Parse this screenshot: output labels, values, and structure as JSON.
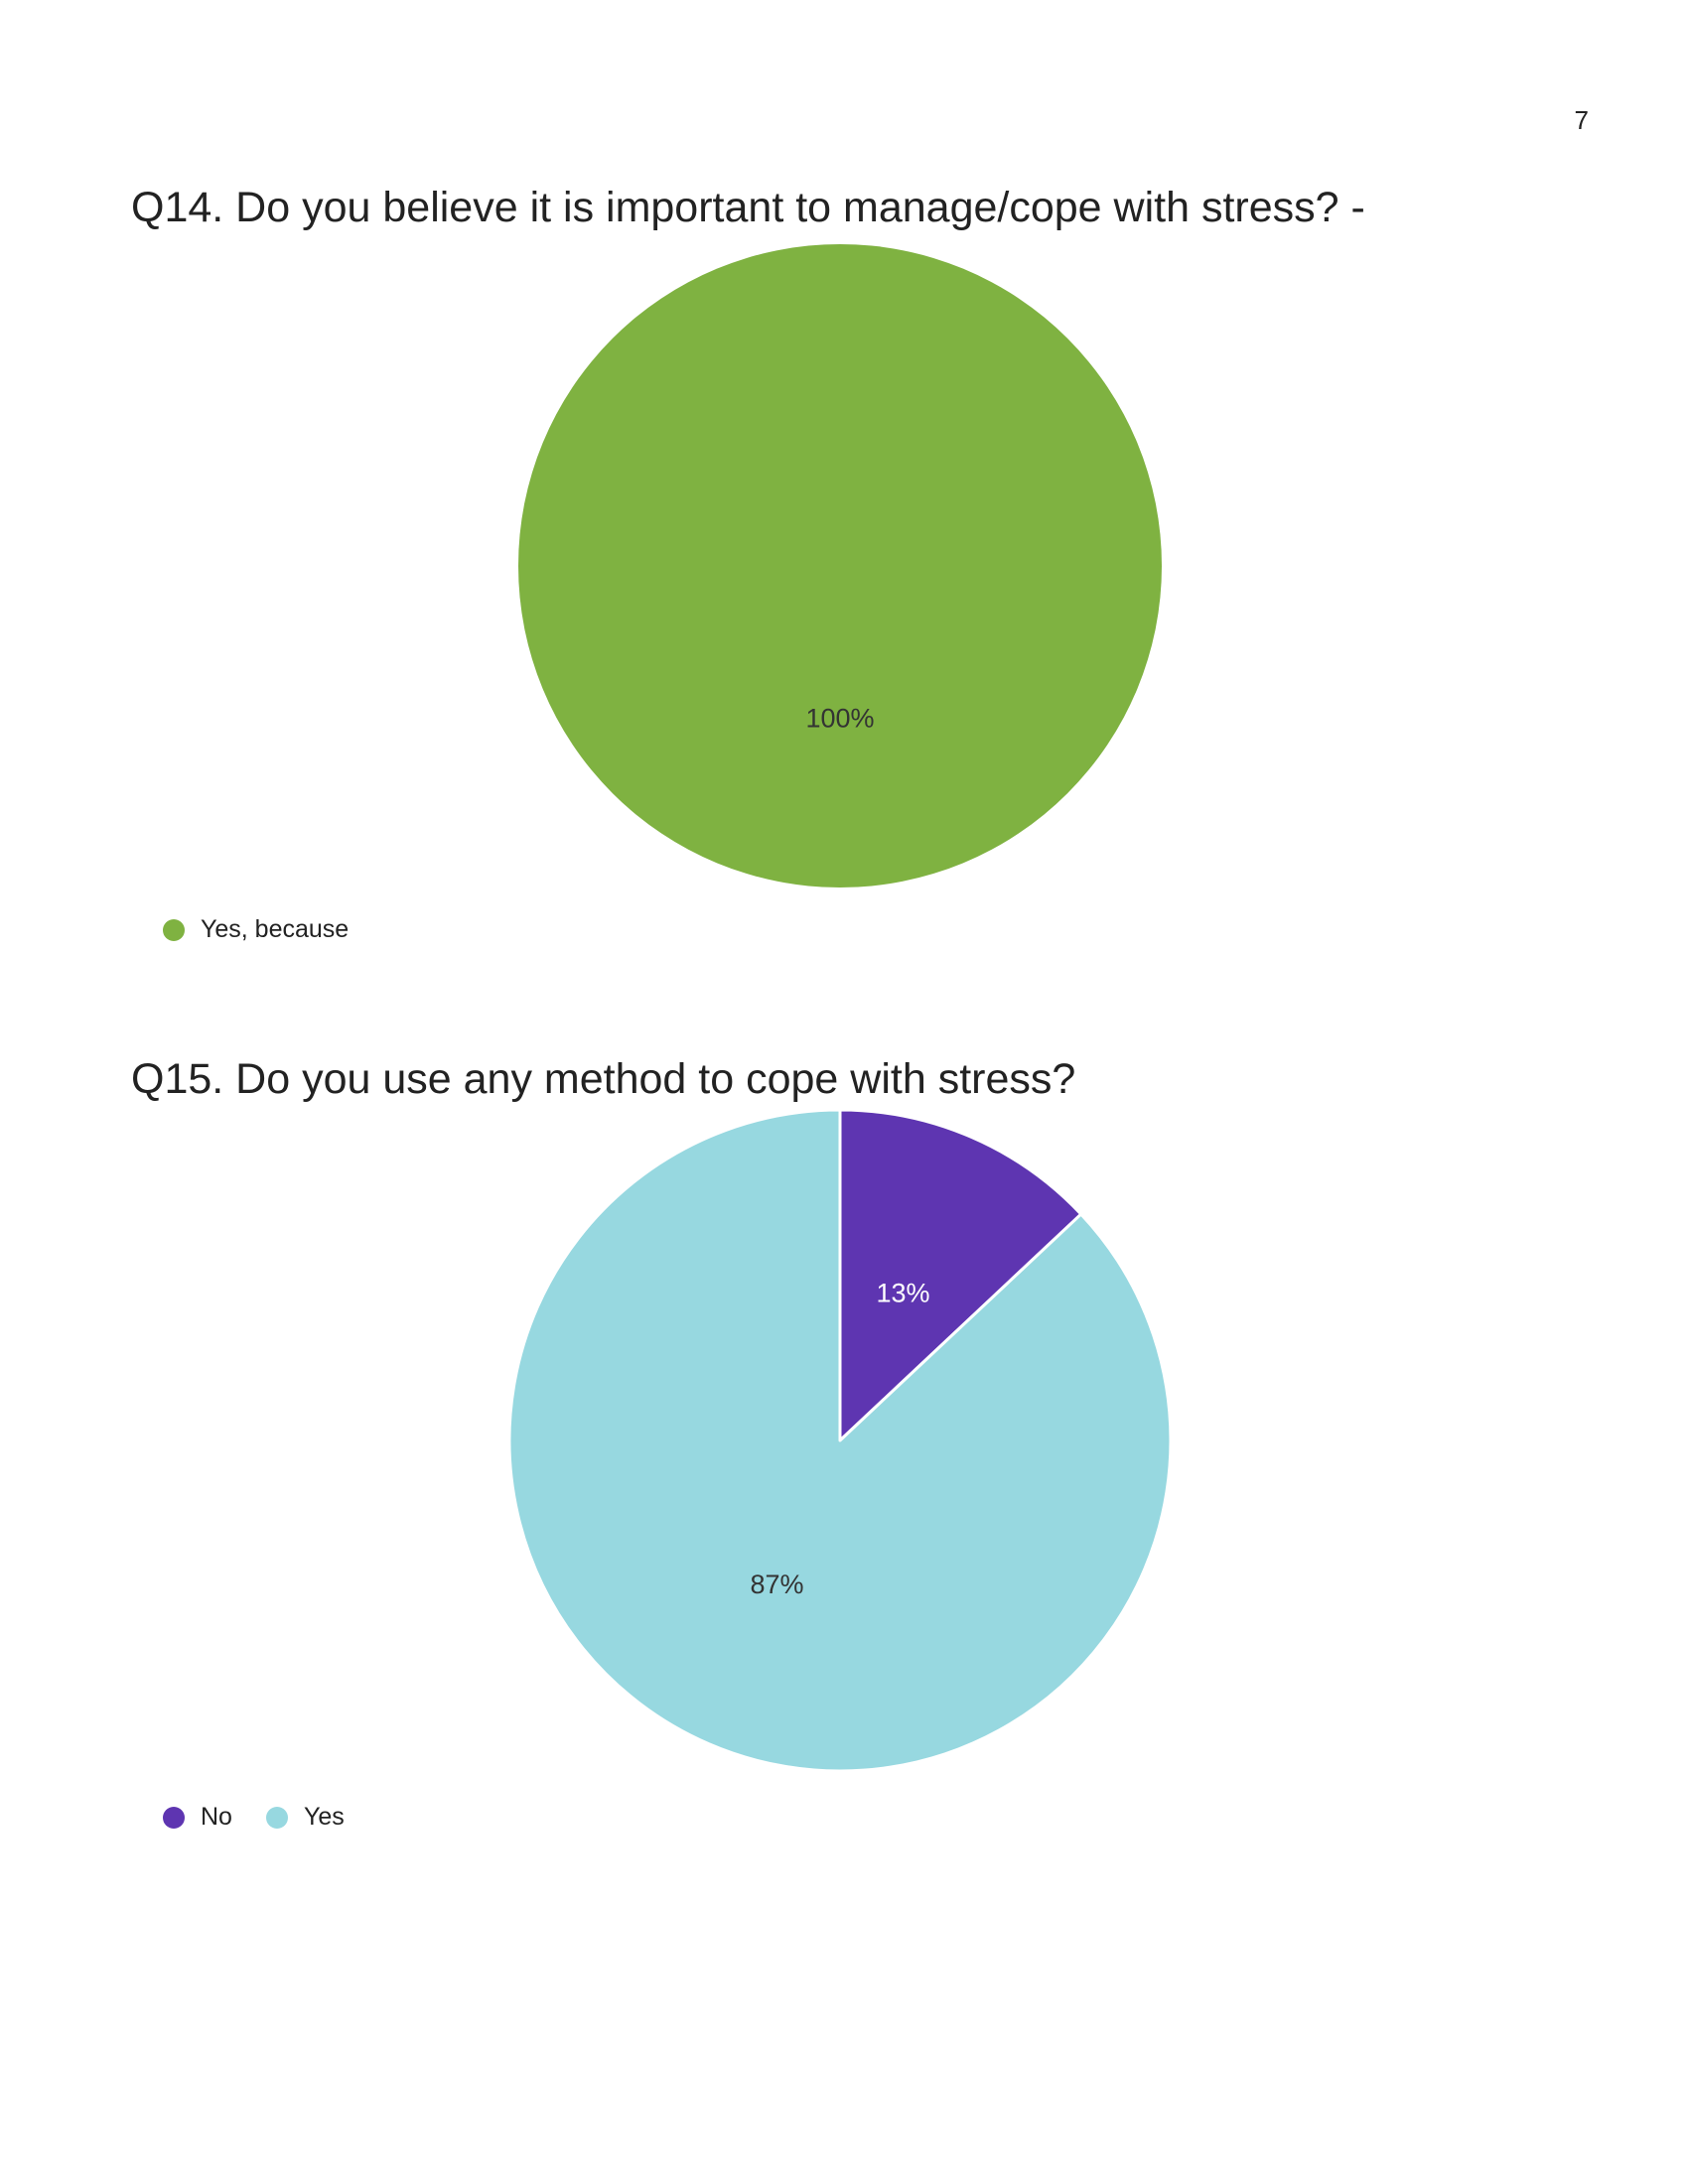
{
  "page_number": "7",
  "colors": {
    "yes_because": "#7FB241",
    "no": "#5E35B1",
    "yes": "#97D8E0"
  },
  "chart_data": [
    {
      "type": "pie",
      "title": "Q14. Do you believe it is important to manage/cope with stress? -",
      "slices": [
        {
          "name": "Yes, because",
          "value": 100,
          "label": "100%",
          "color": "#7FB241",
          "label_color": "#333333"
        }
      ],
      "legend_position": "bottom-left"
    },
    {
      "type": "pie",
      "title": "Q15. Do you use any method to cope with stress?",
      "slices": [
        {
          "name": "No",
          "value": 13,
          "label": "13%",
          "color": "#5E35B1",
          "label_color": "#ffffff"
        },
        {
          "name": "Yes",
          "value": 87,
          "label": "87%",
          "color": "#97D8E0",
          "label_color": "#333333"
        }
      ],
      "legend_position": "bottom-left"
    }
  ]
}
